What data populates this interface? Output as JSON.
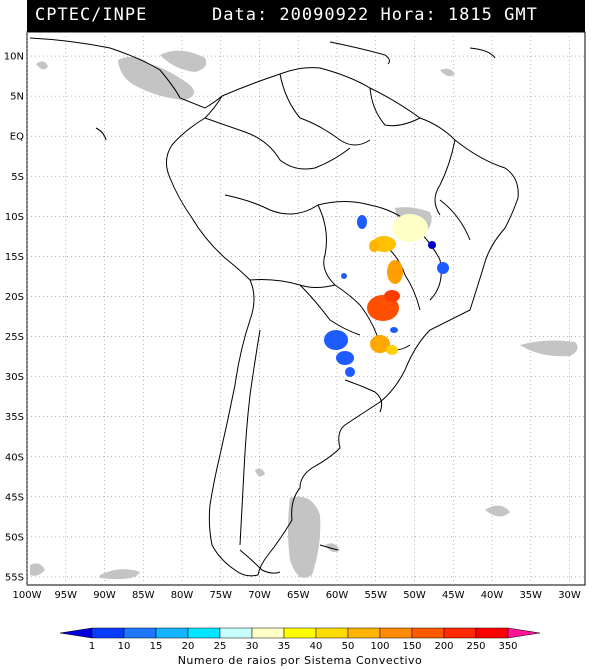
{
  "header": {
    "source": "CPTEC/INPE",
    "datetime": "Data: 20090922 Hora: 1815 GMT"
  },
  "map": {
    "lat_labels": [
      "10N",
      "5N",
      "EQ",
      "5S",
      "10S",
      "15S",
      "20S",
      "25S",
      "30S",
      "35S",
      "40S",
      "45S",
      "50S",
      "55S"
    ],
    "lat_values": [
      10,
      5,
      0,
      -5,
      -10,
      -15,
      -20,
      -25,
      -30,
      -35,
      -40,
      -45,
      -50,
      -55
    ],
    "lon_labels": [
      "100W",
      "95W",
      "90W",
      "85W",
      "80W",
      "75W",
      "70W",
      "65W",
      "60W",
      "55W",
      "50W",
      "45W",
      "40W",
      "35W",
      "30W"
    ],
    "lon_values": [
      -100,
      -95,
      -90,
      -85,
      -80,
      -75,
      -70,
      -65,
      -60,
      -55,
      -50,
      -45,
      -40,
      -35,
      -30
    ],
    "extent": {
      "lon": [
        -100,
        -28
      ],
      "lat": [
        -56,
        13
      ]
    }
  },
  "legend": {
    "title": "Numero de raios por Sistema Convectivo",
    "labels": [
      "1",
      "10",
      "15",
      "20",
      "25",
      "30",
      "35",
      "40",
      "50",
      "100",
      "150",
      "200",
      "250",
      "350"
    ],
    "colors": [
      "#0000dd",
      "#0a3cff",
      "#1e78ff",
      "#14b4ff",
      "#00e6ff",
      "#c8ffff",
      "#ffffc8",
      "#ffff00",
      "#ffdc00",
      "#ffb400",
      "#ff8c00",
      "#ff5a00",
      "#ff2800",
      "#ff0000",
      "#ff1493"
    ]
  }
}
